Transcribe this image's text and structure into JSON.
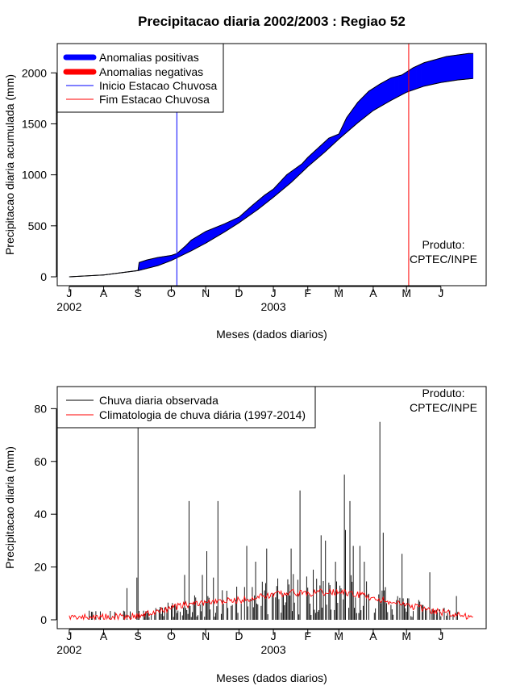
{
  "chart_data": [
    {
      "type": "area",
      "title": "Precipitacao diaria 2002/2003 : Regiao 52",
      "xlabel": "Meses (dados diarios)",
      "ylabel": "Precipitacao diaria acumulada (mm)",
      "ylim": [
        0,
        2200
      ],
      "yticks": [
        0,
        500,
        1000,
        1500,
        2000
      ],
      "xlim_days": [
        -5,
        370
      ],
      "month_ticks": [
        {
          "label": "J",
          "day": 0
        },
        {
          "label": "A",
          "day": 31
        },
        {
          "label": "S",
          "day": 62
        },
        {
          "label": "O",
          "day": 92
        },
        {
          "label": "N",
          "day": 123
        },
        {
          "label": "D",
          "day": 153
        },
        {
          "label": "J",
          "day": 184
        },
        {
          "label": "F",
          "day": 215
        },
        {
          "label": "M",
          "day": 243
        },
        {
          "label": "A",
          "day": 274
        },
        {
          "label": "M",
          "day": 304
        },
        {
          "label": "J",
          "day": 335
        }
      ],
      "year_labels": [
        {
          "label": "2002",
          "day": 0
        },
        {
          "label": "2003",
          "day": 184
        }
      ],
      "legend": [
        {
          "label": "Anomalias positivas",
          "color": "#0000ff",
          "style": "thick"
        },
        {
          "label": "Anomalias negativas",
          "color": "#ff0000",
          "style": "thick"
        },
        {
          "label": "Inicio Estacao Chuvosa",
          "color": "#0000ff",
          "style": "thin"
        },
        {
          "label": "Fim Estacao Chuvosa",
          "color": "#ff0000",
          "style": "thin"
        }
      ],
      "vlines": [
        {
          "name": "inicio",
          "day": 97,
          "color": "#0000ff"
        },
        {
          "name": "fim",
          "day": 306,
          "color": "#ff0000"
        }
      ],
      "credit": [
        "Produto:",
        "CPTEC/INPE"
      ],
      "series": [
        {
          "name": "Acumulado observado",
          "days": [
            0,
            31,
            62,
            63,
            70,
            80,
            92,
            97,
            105,
            110,
            123,
            140,
            153,
            165,
            176,
            184,
            196,
            210,
            215,
            225,
            230,
            234,
            243,
            250,
            260,
            270,
            280,
            290,
            300,
            310,
            320,
            330,
            340,
            350,
            360,
            364
          ],
          "values": [
            0,
            18,
            62,
            140,
            165,
            190,
            210,
            228,
            305,
            360,
            445,
            520,
            585,
            700,
            800,
            860,
            1000,
            1110,
            1170,
            1270,
            1320,
            1360,
            1400,
            1560,
            1710,
            1820,
            1890,
            1950,
            1980,
            2050,
            2100,
            2130,
            2160,
            2175,
            2190,
            2190
          ]
        },
        {
          "name": "Acumulado climatologico",
          "days": [
            0,
            31,
            62,
            80,
            92,
            110,
            123,
            140,
            153,
            170,
            184,
            200,
            215,
            230,
            243,
            260,
            274,
            290,
            304,
            320,
            335,
            350,
            364
          ],
          "values": [
            0,
            18,
            60,
            110,
            160,
            255,
            330,
            440,
            530,
            660,
            780,
            925,
            1080,
            1220,
            1350,
            1510,
            1630,
            1730,
            1810,
            1870,
            1905,
            1930,
            1945
          ]
        }
      ]
    },
    {
      "type": "bar",
      "xlabel": "Meses (dados diarios)",
      "ylabel": "Precipitacao diaria (mm)",
      "ylim": [
        0,
        85
      ],
      "yticks": [
        0,
        20,
        40,
        60,
        80
      ],
      "xlim_days": [
        -5,
        370
      ],
      "month_ticks": [
        {
          "label": "J",
          "day": 0
        },
        {
          "label": "A",
          "day": 31
        },
        {
          "label": "S",
          "day": 62
        },
        {
          "label": "O",
          "day": 92
        },
        {
          "label": "N",
          "day": 123
        },
        {
          "label": "D",
          "day": 153
        },
        {
          "label": "J",
          "day": 184
        },
        {
          "label": "F",
          "day": 215
        },
        {
          "label": "M",
          "day": 243
        },
        {
          "label": "A",
          "day": 274
        },
        {
          "label": "M",
          "day": 304
        },
        {
          "label": "J",
          "day": 335
        }
      ],
      "year_labels": [
        {
          "label": "2002",
          "day": 0
        },
        {
          "label": "2003",
          "day": 184
        }
      ],
      "legend": [
        {
          "label": "Chuva diaria observada",
          "color": "#000000"
        },
        {
          "label": "Climatologia de chuva diária (1997-2014)",
          "color": "#ff0000"
        }
      ],
      "credit": [
        "Produto:",
        "CPTEC/INPE"
      ],
      "observed_peaks": [
        {
          "day": 62,
          "value": 73
        },
        {
          "day": 61,
          "value": 16
        },
        {
          "day": 52,
          "value": 12
        },
        {
          "day": 108,
          "value": 45
        },
        {
          "day": 104,
          "value": 17
        },
        {
          "day": 120,
          "value": 17
        },
        {
          "day": 124,
          "value": 26
        },
        {
          "day": 134,
          "value": 45
        },
        {
          "day": 130,
          "value": 16
        },
        {
          "day": 142,
          "value": 11
        },
        {
          "day": 160,
          "value": 28
        },
        {
          "day": 168,
          "value": 22
        },
        {
          "day": 178,
          "value": 27
        },
        {
          "day": 200,
          "value": 27
        },
        {
          "day": 208,
          "value": 49
        },
        {
          "day": 220,
          "value": 19
        },
        {
          "day": 227,
          "value": 32
        },
        {
          "day": 231,
          "value": 30
        },
        {
          "day": 240,
          "value": 22
        },
        {
          "day": 248,
          "value": 55
        },
        {
          "day": 249,
          "value": 34
        },
        {
          "day": 253,
          "value": 45
        },
        {
          "day": 256,
          "value": 28
        },
        {
          "day": 262,
          "value": 28
        },
        {
          "day": 266,
          "value": 22
        },
        {
          "day": 280,
          "value": 75
        },
        {
          "day": 283,
          "value": 33
        },
        {
          "day": 300,
          "value": 25
        },
        {
          "day": 325,
          "value": 18
        },
        {
          "day": 349,
          "value": 9
        }
      ],
      "climatology": {
        "days": [
          0,
          31,
          62,
          80,
          92,
          110,
          123,
          140,
          153,
          170,
          184,
          200,
          215,
          230,
          243,
          260,
          274,
          290,
          304,
          320,
          335,
          350,
          364
        ],
        "values": [
          1,
          1,
          1.5,
          3,
          4.5,
          6,
          6.5,
          7,
          7.5,
          8.5,
          9.5,
          10.5,
          10,
          10.5,
          10.5,
          9.5,
          8.5,
          6.5,
          5.5,
          4,
          3,
          2,
          1
        ]
      }
    }
  ]
}
